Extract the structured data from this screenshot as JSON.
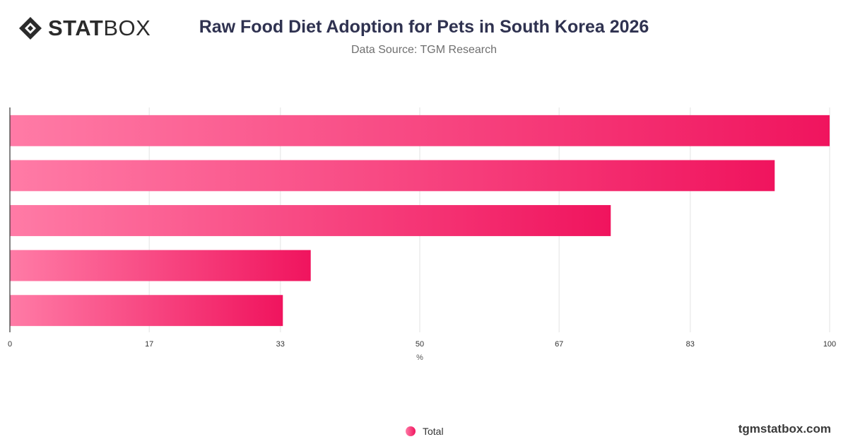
{
  "brand": {
    "bold": "STAT",
    "light": "BOX"
  },
  "header": {
    "title": "Raw Food Diet Adoption for Pets in South Korea 2026",
    "subtitle": "Data Source: TGM Research"
  },
  "legend": {
    "label": "Total"
  },
  "footer": {
    "site": "tgmstatbox.com"
  },
  "colors": {
    "bar_start": "#ff7ba6",
    "bar_end": "#f0145e",
    "grid": "#e3e3e3",
    "axis": "#333333",
    "text": "#333333"
  },
  "chart_data": {
    "type": "bar",
    "orientation": "horizontal",
    "categories": [
      "",
      "",
      "",
      "",
      ""
    ],
    "series": [
      {
        "name": "Total",
        "values": [
          100,
          93.3,
          73.3,
          36.7,
          33.3
        ]
      }
    ],
    "xlabel": "%",
    "xlim": [
      0,
      100
    ],
    "xticks": [
      0,
      17,
      33,
      50,
      67,
      83,
      100
    ],
    "grid": true,
    "legend": "bottom-center"
  }
}
